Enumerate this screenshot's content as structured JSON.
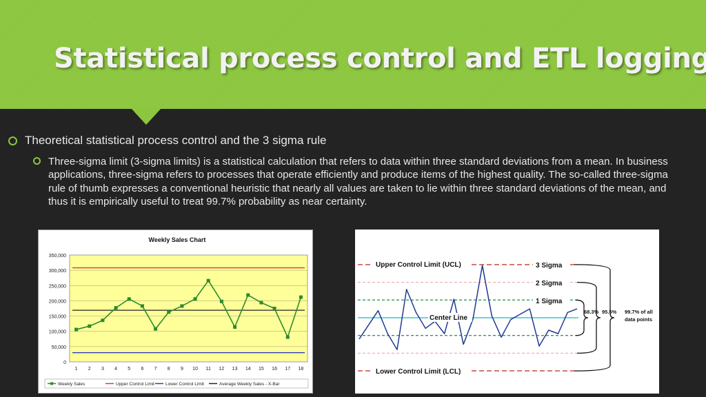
{
  "slide": {
    "title": "Statistical process control and ETL logging",
    "bullet1": "Theoretical statistical process control and the 3 sigma rule",
    "bullet2": "Three-sigma limit (3-sigma limits) is a statistical calculation that refers to data within three standard deviations from a mean. In business applications, three-sigma refers to processes that operate efficiently and produce items of the highest quality. The so-called three-sigma rule of thumb expresses a conventional heuristic that nearly all values are taken to lie within three standard deviations of the mean, and thus it is empirically useful to treat 99.7% probability as near certainty."
  },
  "colors": {
    "header": "#8cc63e",
    "background": "#232323",
    "plot_area": "#ffff99",
    "sales_line": "#2e8b2e",
    "ucl_line": "#d83a2a",
    "lcl_line": "#2a3bb8",
    "avg_line": "#222222",
    "sigma_cyan": "#36c6d0",
    "sigma_green": "#2e9a5a",
    "sigma_pink": "#e4a0a0",
    "control_red": "#c0392b",
    "process_line": "#1f3a93"
  },
  "chart_data": [
    {
      "type": "line",
      "title": "Weekly Sales Chart",
      "categories": [
        "1",
        "2",
        "3",
        "4",
        "5",
        "6",
        "7",
        "8",
        "9",
        "10",
        "11",
        "12",
        "13",
        "14",
        "15",
        "16",
        "17",
        "18"
      ],
      "series": [
        {
          "name": "Weekly Sales",
          "values": [
            106000,
            117000,
            136000,
            177000,
            206000,
            183000,
            108000,
            163000,
            183000,
            206000,
            266000,
            198000,
            114000,
            219000,
            194000,
            175000,
            81000,
            212000
          ]
        },
        {
          "name": "Upper Control Limit",
          "values": [
            308000,
            308000,
            308000,
            308000,
            308000,
            308000,
            308000,
            308000,
            308000,
            308000,
            308000,
            308000,
            308000,
            308000,
            308000,
            308000,
            308000,
            308000
          ]
        },
        {
          "name": "Lower Control Limit",
          "values": [
            30000,
            30000,
            30000,
            30000,
            30000,
            30000,
            30000,
            30000,
            30000,
            30000,
            30000,
            30000,
            30000,
            30000,
            30000,
            30000,
            30000,
            30000
          ]
        },
        {
          "name": "Average Weekly Sales - X-Bar",
          "values": [
            169000,
            169000,
            169000,
            169000,
            169000,
            169000,
            169000,
            169000,
            169000,
            169000,
            169000,
            169000,
            169000,
            169000,
            169000,
            169000,
            169000,
            169000
          ]
        }
      ],
      "yticks": [
        "0",
        "50,000",
        "100,000",
        "150,000",
        "200,000",
        "250,000",
        "300,000",
        "350,000"
      ],
      "ylim": [
        0,
        350000
      ],
      "grid": true,
      "legend": "bottom"
    },
    {
      "type": "line",
      "labels": {
        "ucl": "Upper Control Limit (UCL)",
        "lcl": "Lower Control Limit (LCL)",
        "center": "Center Line",
        "sigma3": "3 Sigma",
        "sigma2": "2 Sigma",
        "sigma1": "1 Sigma",
        "pct1": "68.3%",
        "pct2": "95.5%",
        "pct3a": "99.7% of all",
        "pct3b": "data points"
      },
      "levels_sigma": {
        "ucl": 3,
        "upper2": 2,
        "upper1": 1,
        "center": 0,
        "lower1": -1,
        "lower2": -2,
        "lcl": -3
      },
      "process_values_sigma": [
        -1.2,
        -0.4,
        0.4,
        -0.9,
        -1.8,
        1.6,
        0.3,
        -0.6,
        -0.2,
        -0.9,
        1.05,
        -1.5,
        -0.1,
        2.95,
        0.1,
        -1.1,
        -0.1,
        0.2,
        0.5,
        -1.6,
        -0.7,
        -0.9,
        0.3,
        0.5
      ]
    }
  ]
}
